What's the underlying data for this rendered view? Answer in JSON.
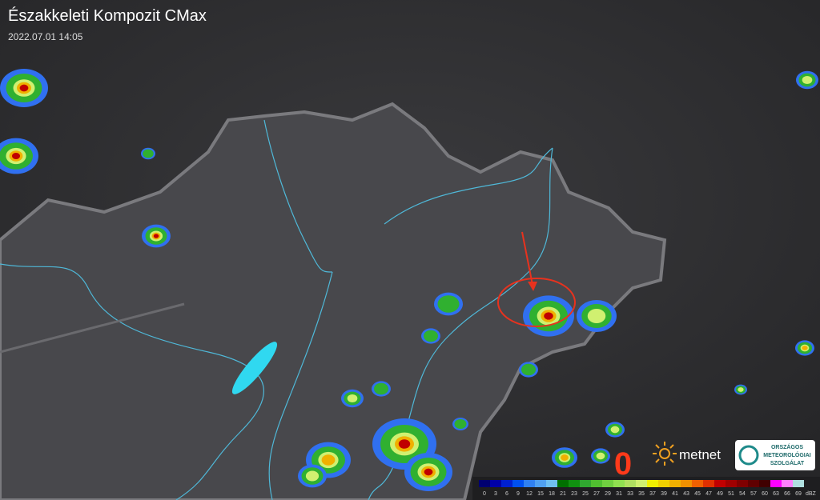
{
  "header": {
    "title": "Északkeleti Kompozit CMax",
    "timestamp": "2022.07.01 14:05"
  },
  "marker": "0",
  "logos": {
    "metnet": "metnet",
    "omsz": [
      "ORSZÁGOS",
      "METEOROLÓGIAI",
      "SZOLGÁLAT"
    ]
  },
  "legend": {
    "unit": "dBZ",
    "levels": [
      {
        "value": 0,
        "color": "#000070"
      },
      {
        "value": 3,
        "color": "#0000a8"
      },
      {
        "value": 6,
        "color": "#0020d0"
      },
      {
        "value": 9,
        "color": "#0050f0"
      },
      {
        "value": 12,
        "color": "#3080f0"
      },
      {
        "value": 15,
        "color": "#50a0f0"
      },
      {
        "value": 18,
        "color": "#70c0f0"
      },
      {
        "value": 21,
        "color": "#007000"
      },
      {
        "value": 23,
        "color": "#109010"
      },
      {
        "value": 25,
        "color": "#30a830"
      },
      {
        "value": 27,
        "color": "#50c030"
      },
      {
        "value": 29,
        "color": "#70d040"
      },
      {
        "value": 31,
        "color": "#90e050"
      },
      {
        "value": 33,
        "color": "#b0e060"
      },
      {
        "value": 35,
        "color": "#d0f070"
      },
      {
        "value": 37,
        "color": "#f0f000"
      },
      {
        "value": 39,
        "color": "#f0d000"
      },
      {
        "value": 41,
        "color": "#f0b000"
      },
      {
        "value": 43,
        "color": "#f09000"
      },
      {
        "value": 45,
        "color": "#f06000"
      },
      {
        "value": 47,
        "color": "#e03000"
      },
      {
        "value": 49,
        "color": "#c00000"
      },
      {
        "value": 51,
        "color": "#a00000"
      },
      {
        "value": 54,
        "color": "#800000"
      },
      {
        "value": 57,
        "color": "#600000"
      },
      {
        "value": 60,
        "color": "#400000"
      },
      {
        "value": 63,
        "color": "#ff00ff"
      },
      {
        "value": 66,
        "color": "#ff80ff"
      },
      {
        "value": 69,
        "color": "#b0e0e0"
      }
    ]
  }
}
